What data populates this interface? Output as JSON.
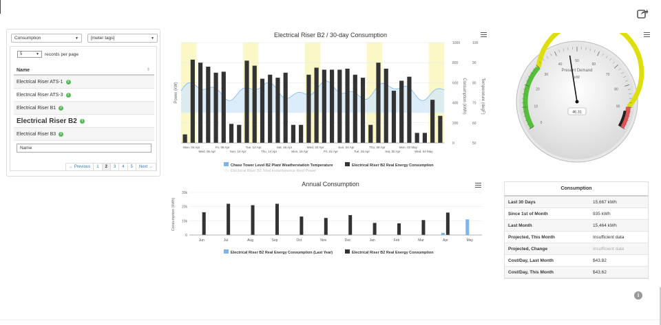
{
  "filters": {
    "type_select": "Consumption",
    "tags_select": "[meter tags]"
  },
  "table": {
    "rpp_value": "5",
    "rpp_label": "records per page",
    "header": "Name",
    "rows": [
      {
        "name": "Electrical Riser ATS-1"
      },
      {
        "name": "Electrical Riser ATS-3"
      },
      {
        "name": "Electrical Riser B1"
      },
      {
        "name": "Electrical Riser B2"
      },
      {
        "name": "Electrical Riser B3"
      }
    ],
    "filter_placeholder": "Name",
    "pager": [
      "← Previous",
      "1",
      "2",
      "3",
      "4",
      "5",
      "Next →"
    ],
    "pager_active": "2"
  },
  "chart_data": [
    {
      "type": "bar",
      "title": "Electrical Riser B2 / 30-day Consumption",
      "ylabel": "Power (kW)",
      "y2label": "Consumption (kWh)",
      "y3label": "Temperature (degF)",
      "y2ticks": [
        "0",
        "200",
        "400",
        "600",
        "800",
        "1000"
      ],
      "y3ticks": [
        "50",
        "60",
        "70",
        "80",
        "90",
        "100"
      ],
      "xlabels_top": [
        "Mon, 04 Apr",
        "Fri, 08 Apr",
        "Tue, 12 Apr",
        "Sat, 16 Apr",
        "Wed, 20 Apr",
        "Sun, 24 Apr",
        "Thu, 28 Apr",
        "Mon, 02 May"
      ],
      "xlabels_bottom": [
        "Wed, 06 Apr",
        "Sun, 10 Apr",
        "Thu, 14 Apr",
        "Mon, 18 Apr",
        "Fri, 22 Apr",
        "Tue, 26 Apr",
        "Sat, 30 Apr",
        "Wed, 04 May"
      ],
      "ylim": [
        0,
        1000
      ],
      "values": [
        85,
        830,
        800,
        760,
        700,
        710,
        190,
        180,
        820,
        770,
        640,
        680,
        650,
        700,
        180,
        180,
        680,
        750,
        730,
        730,
        730,
        740,
        680,
        650,
        180,
        800,
        740,
        520,
        620,
        660,
        100,
        100,
        430,
        270
      ],
      "legend": [
        "Chase Tower Level B2 Plant Weatherstation Temperature",
        "Electrical Riser B2 Real Energy Consumption",
        "Electrical Riser B2 Total Instantaneous Real Power"
      ],
      "colors": {
        "bar": "#333333",
        "temp": "#7cb5ec",
        "weekend": "#fbf8c8"
      }
    },
    {
      "type": "bar",
      "title": "Annual Consumption",
      "ylabel": "Consumption (kWh)",
      "yticks": [
        "0",
        "10k",
        "20k",
        "30k"
      ],
      "ylim": [
        0,
        30000
      ],
      "categories": [
        "Jun",
        "Jul",
        "Aug",
        "Sep",
        "Oct",
        "Nov",
        "Dec",
        "Jan",
        "Feb",
        "Mar",
        "Apr",
        "May"
      ],
      "series": [
        {
          "name": "Electrical Riser B2 Real Energy Consumption (Last Year)",
          "color": "#7cb5ec",
          "values": [
            0,
            0,
            0,
            0,
            0,
            0,
            0,
            0,
            0,
            0,
            1500,
            11000
          ]
        },
        {
          "name": "Electrical Riser B2 Real Energy Consumption",
          "color": "#333333",
          "values": [
            16000,
            22000,
            21000,
            22000,
            13000,
            12000,
            14000,
            8500,
            8200,
            10500,
            15800,
            0
          ]
        }
      ]
    }
  ],
  "gauge": {
    "title": "Present Demand",
    "unit": "kW",
    "value": "46.31",
    "ticks": [
      "0",
      "10",
      "20",
      "30",
      "40",
      "50",
      "60",
      "70",
      "80",
      "90"
    ]
  },
  "consumption": {
    "title": "Consumption",
    "rows": [
      {
        "k": "Last 30 Days",
        "v": "15,667 kWh"
      },
      {
        "k": "Since 1st of Month",
        "v": "935 kWh"
      },
      {
        "k": "Last Month",
        "v": "15,464 kWh"
      },
      {
        "k": "Projected, This Month",
        "v": "Insufficient data"
      },
      {
        "k": "Projected, Change",
        "v": "Insufficient data"
      },
      {
        "k": "Cost/Day, Last Month",
        "v": "$43.82"
      },
      {
        "k": "Cost/Day, This Month",
        "v": "$43.62"
      }
    ]
  }
}
